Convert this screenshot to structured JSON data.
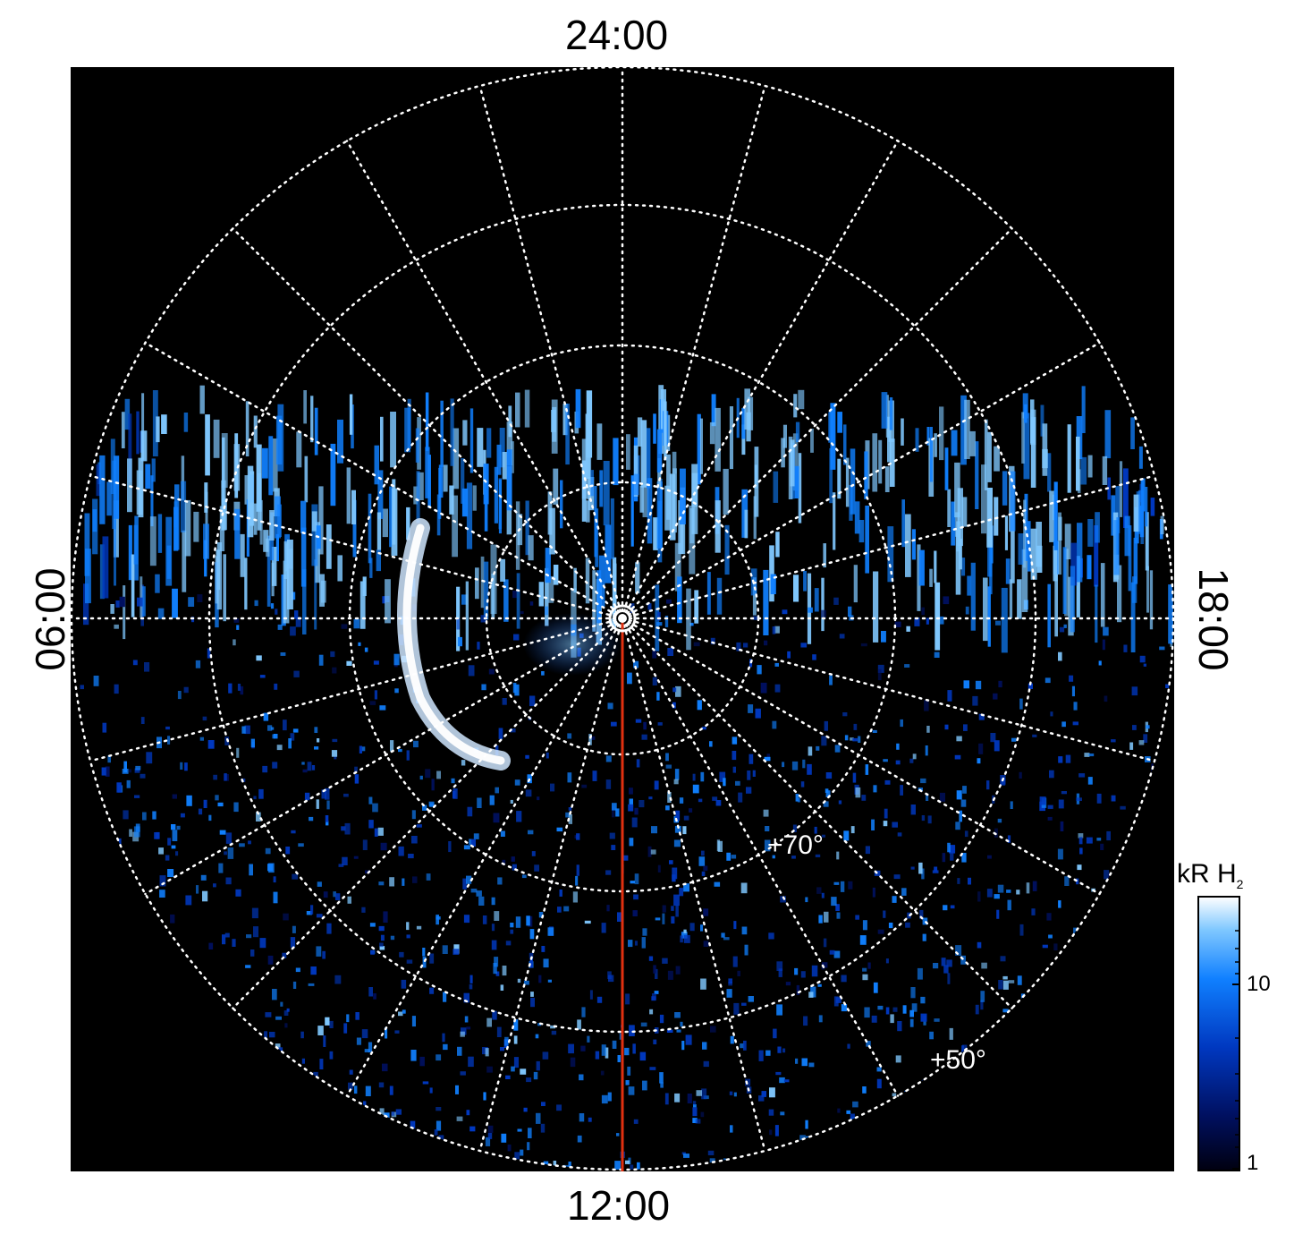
{
  "local_time_labels": {
    "top": "24:00",
    "bottom": "12:00",
    "left": "06:00",
    "right": "18:00"
  },
  "latitude_labels": {
    "lat_70": "+70°",
    "lat_50": "+50°"
  },
  "colorbar": {
    "title_main": "kR H",
    "title_sub": "2",
    "tick_10": "10",
    "tick_1": "1",
    "colors": [
      "#000010",
      "#001060",
      "#0038c0",
      "#1080ff",
      "#80c8ff",
      "#ffffff"
    ]
  },
  "colors": {
    "background": "#000000",
    "grid": "#ffffff",
    "meridian": "#e03010",
    "aurora": "#2a8cff"
  }
}
